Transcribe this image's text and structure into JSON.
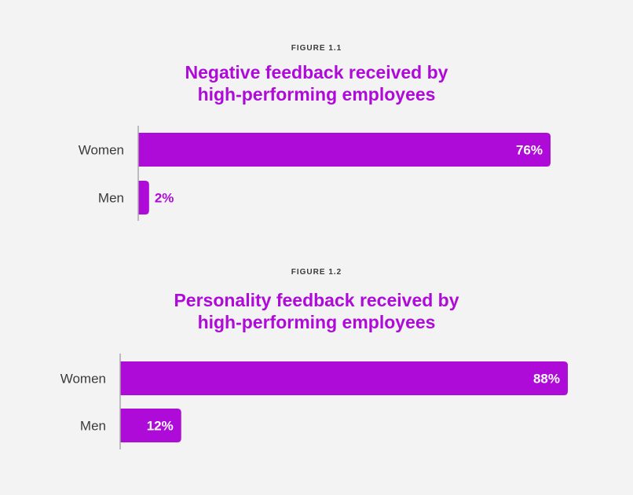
{
  "colors": {
    "bar": "#ae0ad8",
    "title": "#ae0ad8",
    "axis": "#a8a8a8",
    "label_inside": "#ffffff",
    "label_outside": "#ae0ad8"
  },
  "chart_data": [
    {
      "type": "bar",
      "orientation": "horizontal",
      "figure_label": "FIGURE 1.1",
      "title_lines": [
        "Negative feedback received by",
        "high-performing employees"
      ],
      "categories": [
        "Women",
        "Men"
      ],
      "values": [
        76,
        2
      ],
      "value_labels": [
        "76%",
        "2%"
      ],
      "unit": "%",
      "xlim": [
        0,
        100
      ],
      "grid": false,
      "legend": "none"
    },
    {
      "type": "bar",
      "orientation": "horizontal",
      "figure_label": "FIGURE 1.2",
      "title_lines": [
        "Personality feedback received by",
        "high-performing employees"
      ],
      "categories": [
        "Women",
        "Men"
      ],
      "values": [
        88,
        12
      ],
      "value_labels": [
        "88%",
        "12%"
      ],
      "unit": "%",
      "xlim": [
        0,
        100
      ],
      "grid": false,
      "legend": "none"
    }
  ]
}
